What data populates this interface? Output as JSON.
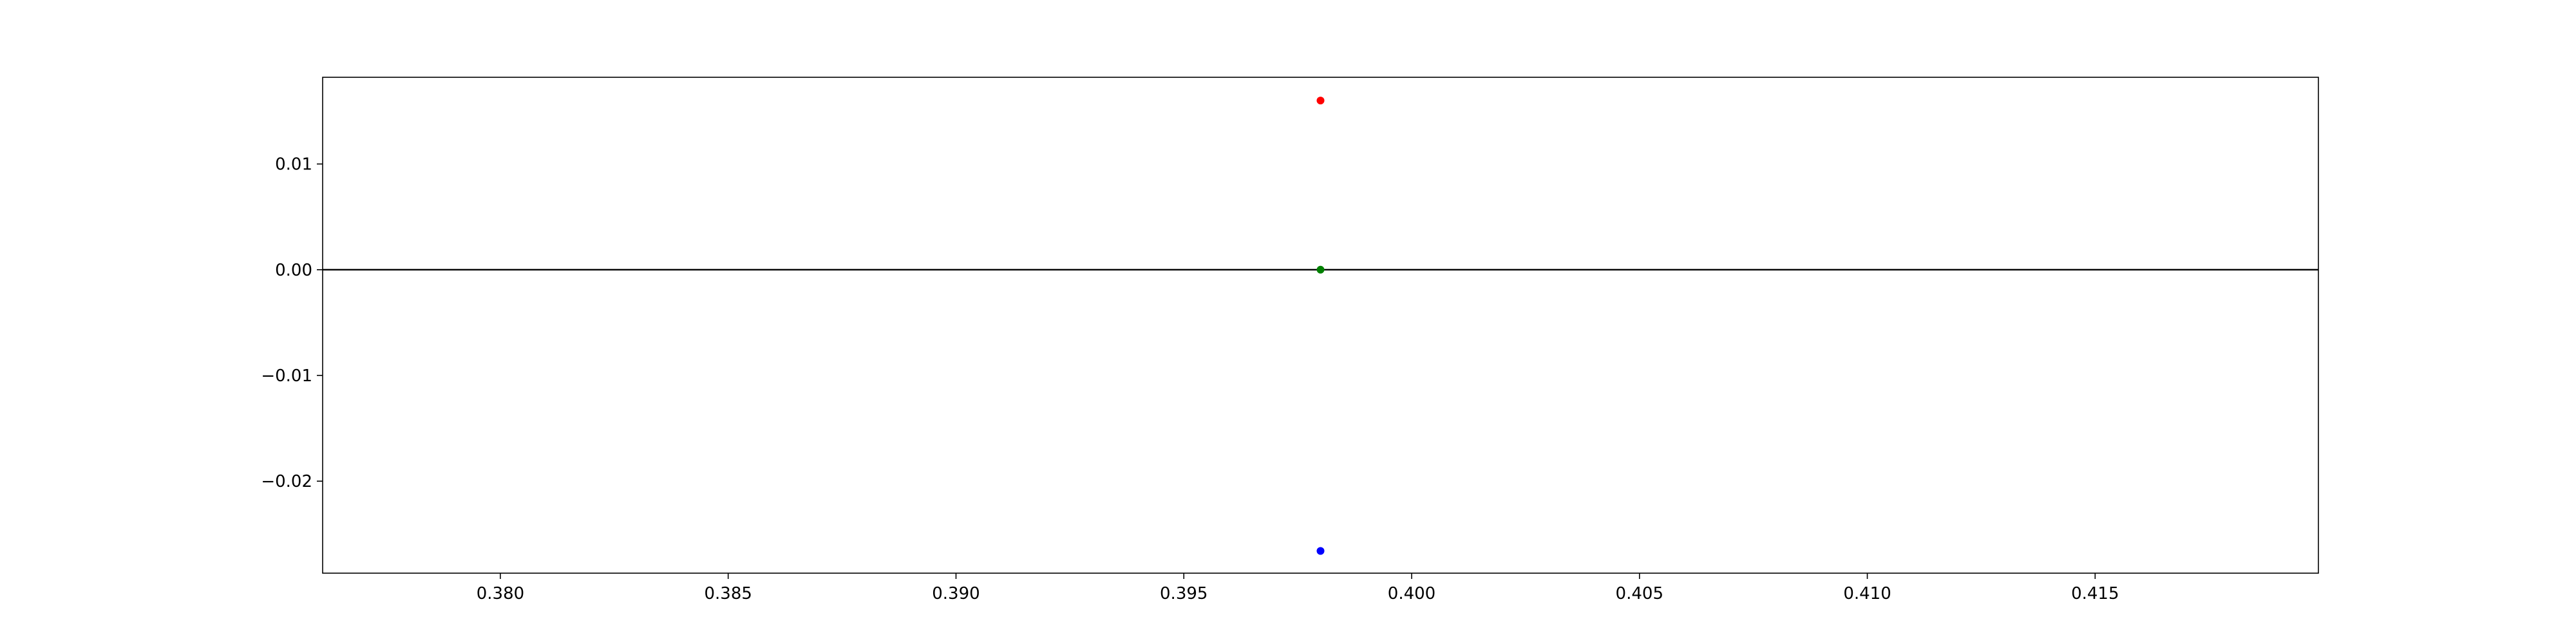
{
  "chart_data": {
    "type": "scatter",
    "title": "",
    "xlabel": "",
    "ylabel": "",
    "xlim": [
      0.3761,
      0.4199
    ],
    "ylim": [
      -0.0287,
      0.0182
    ],
    "grid": false,
    "x_ticks": [
      0.38,
      0.385,
      0.39,
      0.395,
      0.4,
      0.405,
      0.41,
      0.415
    ],
    "x_tick_labels": [
      "0.380",
      "0.385",
      "0.390",
      "0.395",
      "0.400",
      "0.405",
      "0.410",
      "0.415"
    ],
    "y_ticks": [
      0.01,
      0.0,
      -0.01,
      -0.02
    ],
    "y_tick_labels": [
      "0.01",
      "0.00",
      "−0.01",
      "−0.02"
    ],
    "reference_line": {
      "y": 0.0,
      "color": "#000000"
    },
    "series": [
      {
        "x": [
          0.398
        ],
        "y": [
          0.016
        ],
        "color": "#ff0000"
      },
      {
        "x": [
          0.398
        ],
        "y": [
          0.0
        ],
        "color": "#008000"
      },
      {
        "x": [
          0.398
        ],
        "y": [
          -0.0266
        ],
        "color": "#0000ff"
      }
    ]
  }
}
